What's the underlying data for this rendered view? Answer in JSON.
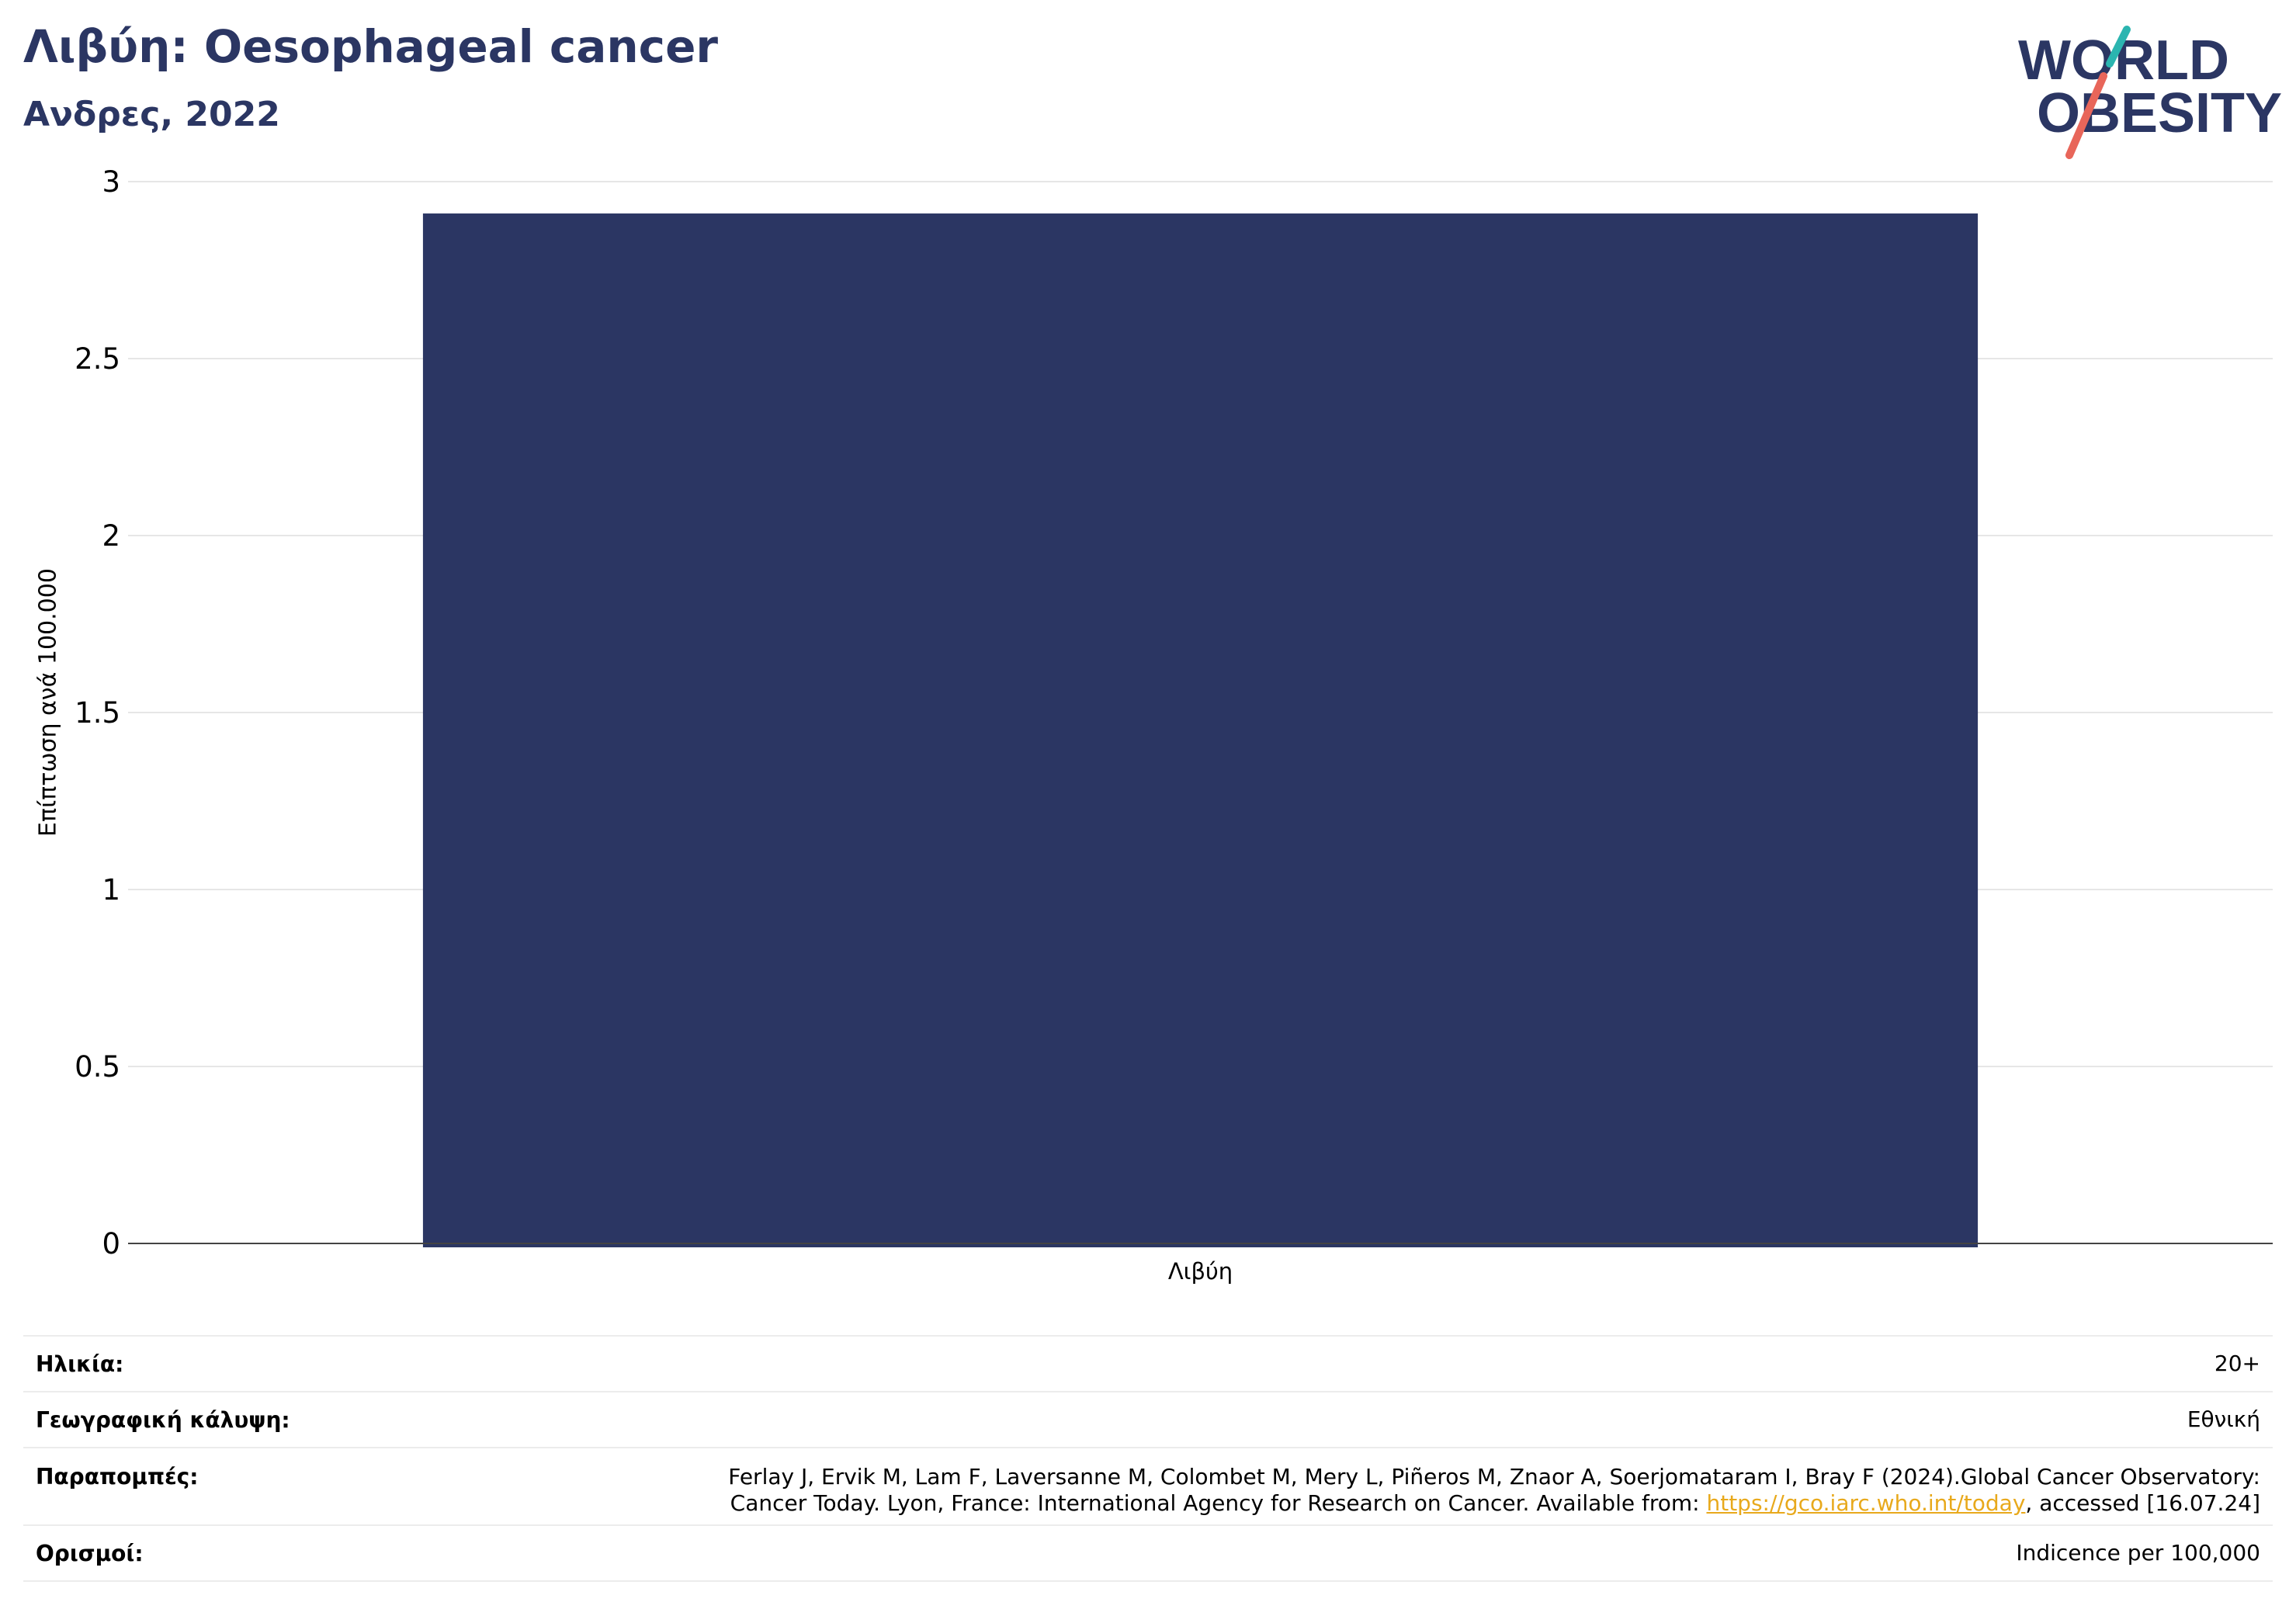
{
  "header": {
    "title": "Λιβύη: Oesophageal cancer",
    "subtitle": "Ανδρες, 2022"
  },
  "logo": {
    "line1": "WORLD",
    "line2": "OBESITY",
    "text_color": "#2b3663",
    "slash_color_top": "#2bb5b0",
    "slash_color_bottom": "#e8665a"
  },
  "chart_data": {
    "type": "bar",
    "categories": [
      "Λιβύη"
    ],
    "values": [
      2.91
    ],
    "title": "",
    "xlabel": "",
    "ylabel": "Επίπτωση ανά 100.000",
    "ylim": [
      0,
      3
    ],
    "yticks": [
      0,
      0.5,
      1,
      1.5,
      2,
      2.5,
      3
    ],
    "grid": true,
    "bar_color": "#2b3663"
  },
  "info": {
    "age_label": "Ηλικία:",
    "age_value": "20+",
    "coverage_label": "Γεωγραφική κάλυψη:",
    "coverage_value": "Εθνική",
    "refs_label": "Παραπομπές:",
    "refs_text_1": "Ferlay J, Ervik M, Lam F, Laversanne M, Colombet M, Mery L, Piñeros M, Znaor A, Soerjomataram I, Bray F (2024).Global Cancer Observatory:",
    "refs_text_2": "Cancer Today. Lyon, France: International Agency for Research on Cancer. Available from: ",
    "refs_link": "https://gco.iarc.who.int/today",
    "refs_text_3": ", accessed [16.07.24]",
    "definitions_label": "Ορισμοί:",
    "definitions_value": "Indicence per 100,000"
  }
}
